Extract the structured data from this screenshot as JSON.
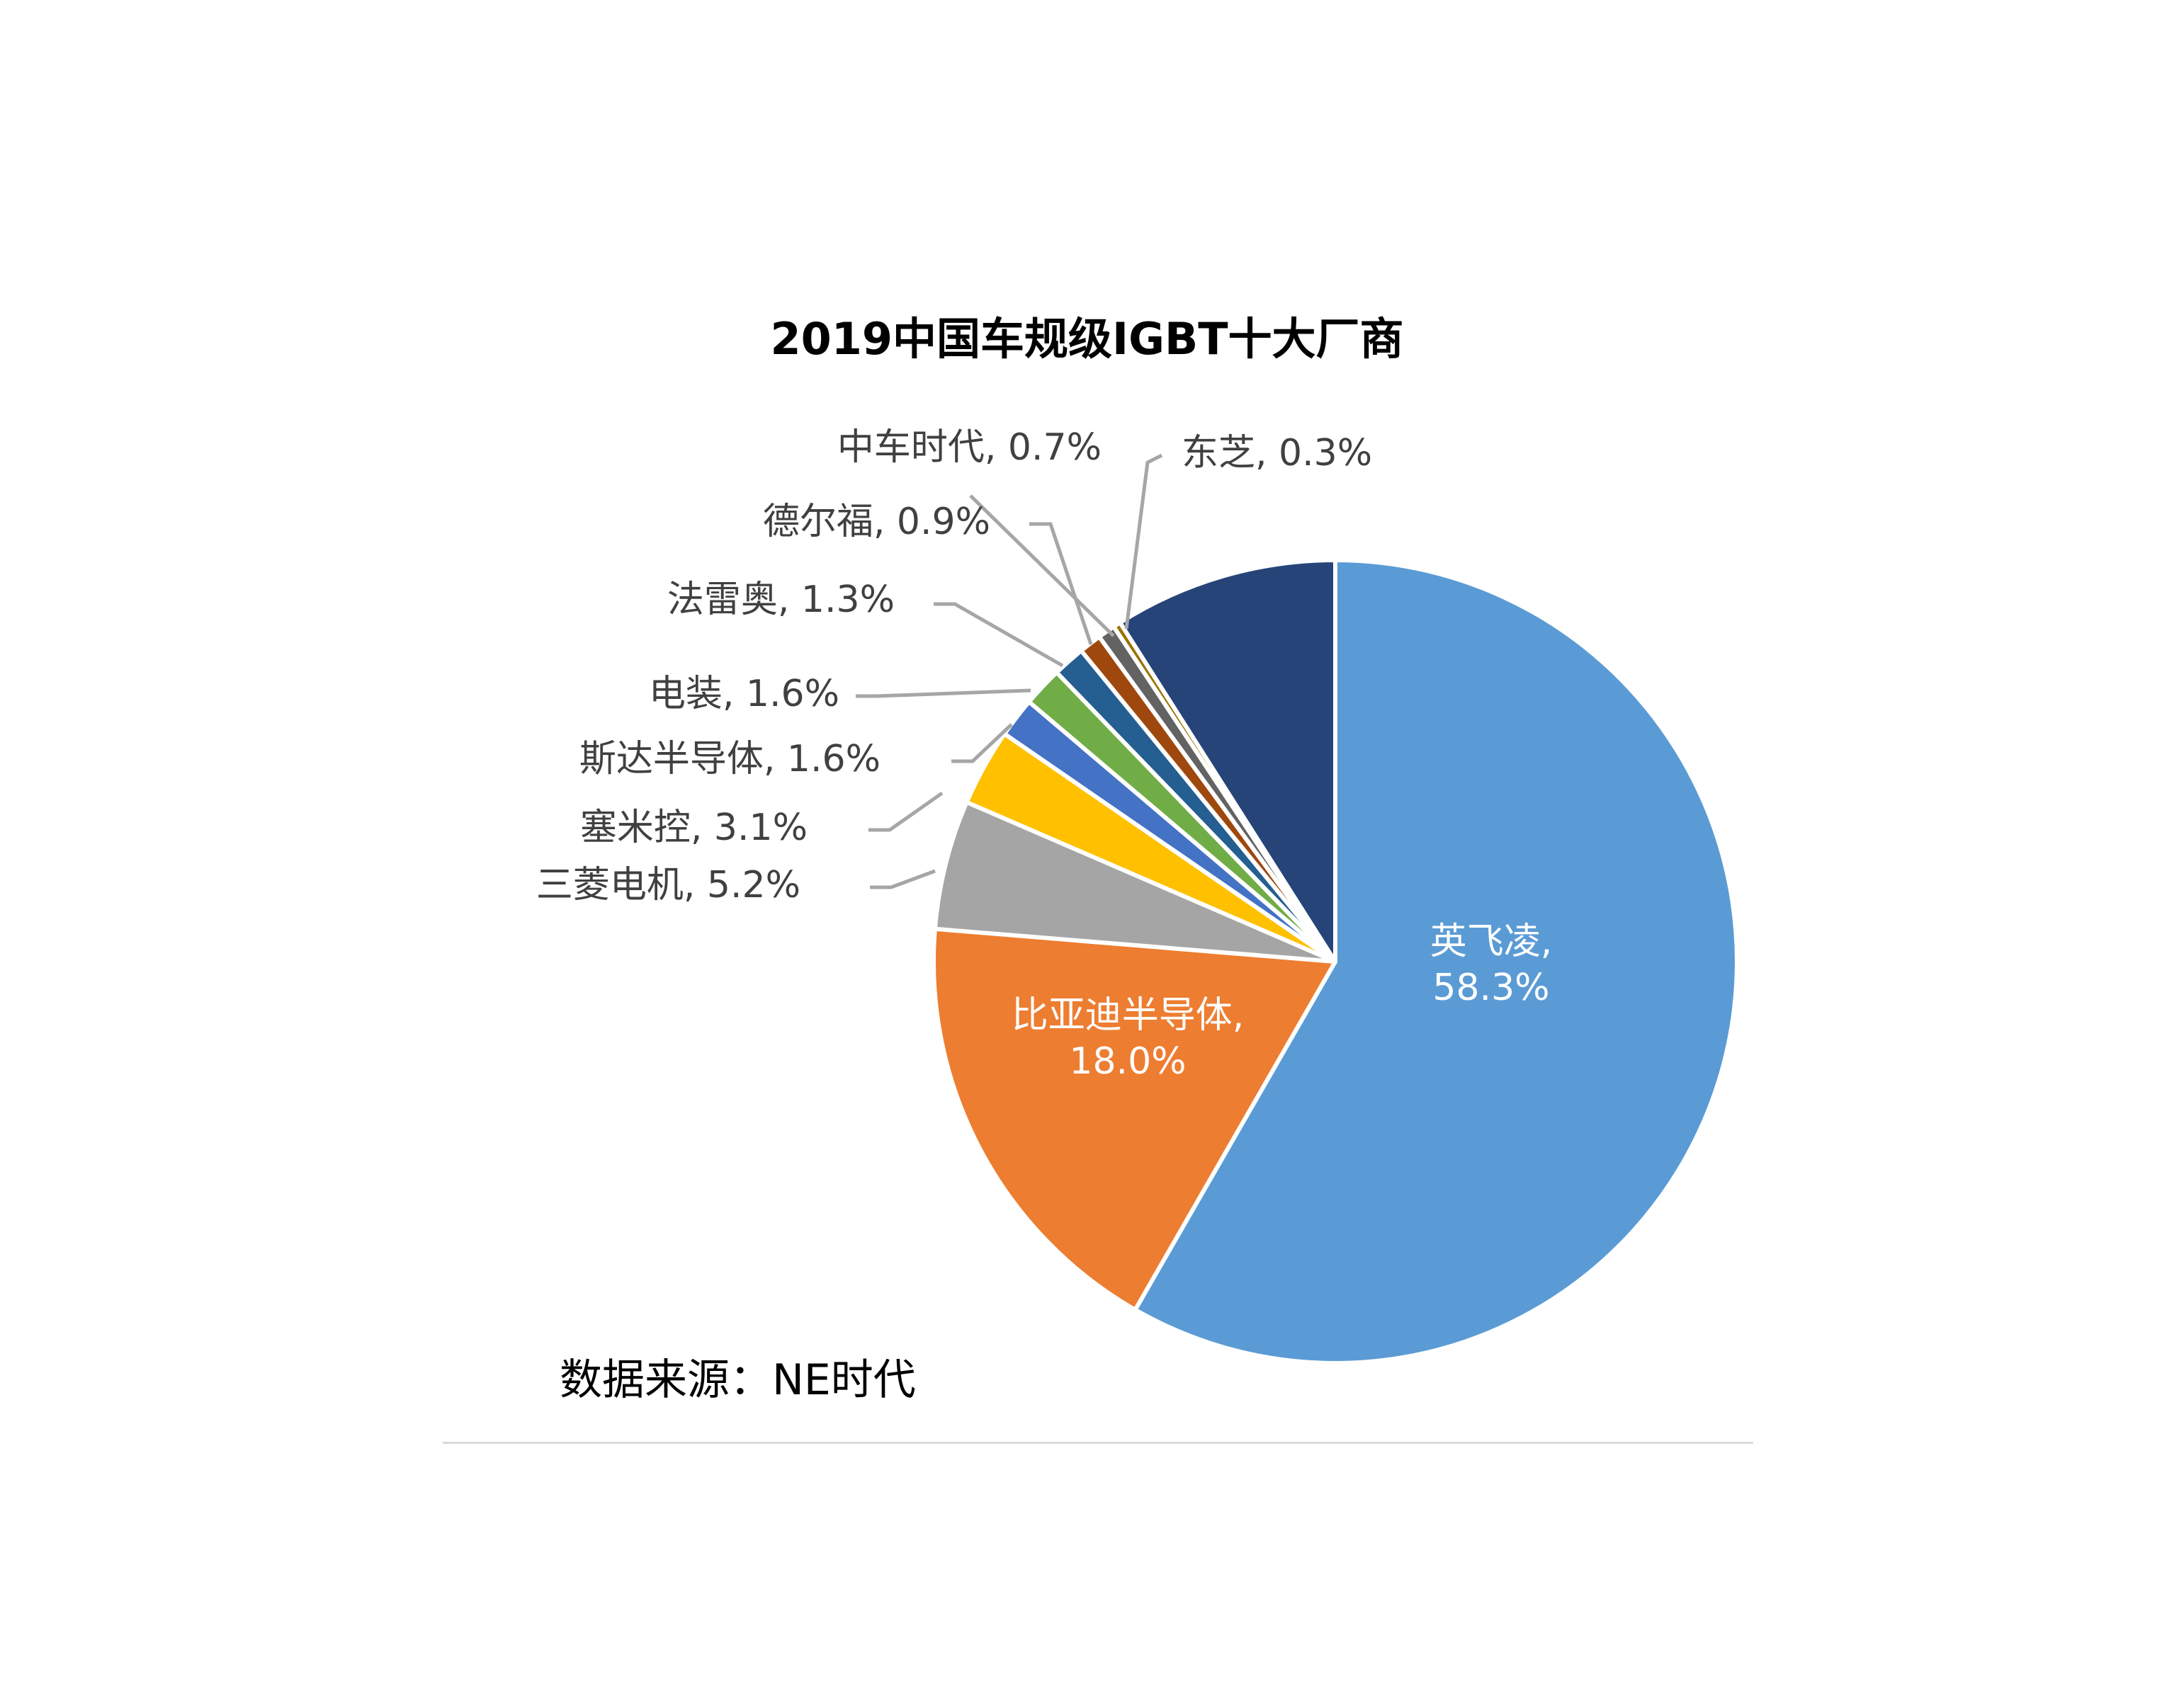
{
  "chart_data": {
    "type": "pie",
    "title": "2019中国车规级IGBT十大厂商",
    "categories": [
      "英飞凌",
      "比亚迪半导体",
      "三菱电机",
      "塞米控",
      "斯达半导体",
      "电装",
      "法雷奥",
      "德尔福",
      "中车时代",
      "东芝",
      ""
    ],
    "values": [
      58.3,
      18.0,
      5.2,
      3.1,
      1.6,
      1.6,
      1.3,
      0.9,
      0.7,
      0.3,
      9.0
    ],
    "labels": [
      "英飞凌,",
      "比亚迪半导体,",
      "三菱电机, 5.2%",
      "塞米控, 3.1%",
      "斯达半导体, 1.6%",
      "电装, 1.6%",
      "法雷奥, 1.3%",
      "德尔福, 0.9%",
      "中车时代, 0.7%",
      "东芝, 0.3%",
      ""
    ],
    "inside_value_labels": [
      "58.3%",
      "18.0%"
    ],
    "colors": [
      "#5b9bd5",
      "#ed7d31",
      "#a5a5a5",
      "#ffc000",
      "#4472c4",
      "#70ad47",
      "#255e91",
      "#9e480e",
      "#636363",
      "#997300",
      "#264478"
    ],
    "start_angle_deg": 0,
    "direction": "clockwise"
  },
  "source_note": "数据来源：NE时代"
}
